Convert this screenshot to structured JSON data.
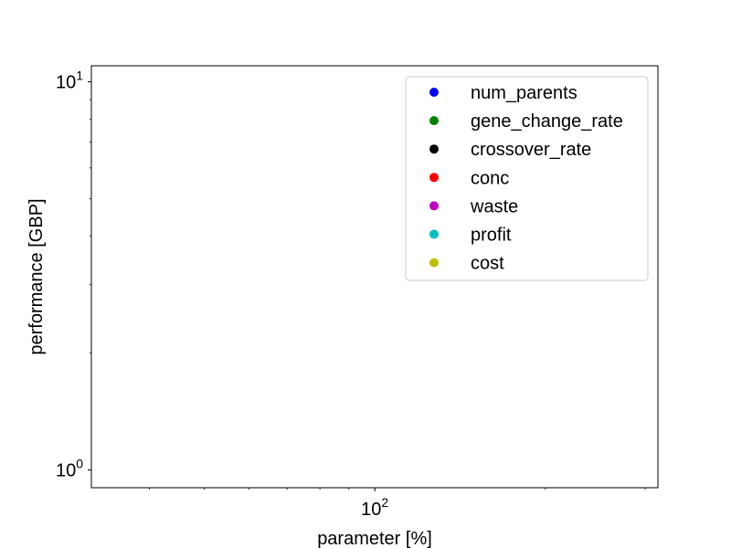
{
  "chart_data": {
    "type": "scatter",
    "title": "",
    "xlabel": "parameter [%]",
    "ylabel": "performance [GBP]",
    "xscale": "log",
    "yscale": "log",
    "xlim": [
      31.6,
      316
    ],
    "ylim": [
      0.9,
      11
    ],
    "x_ticks": [
      {
        "base": "10",
        "exp": "2",
        "value": 100
      }
    ],
    "y_ticks": [
      {
        "base": "10",
        "exp": "0",
        "value": 1
      },
      {
        "base": "10",
        "exp": "1",
        "value": 10
      }
    ],
    "grid": false,
    "legend_position": "top-right",
    "series": [
      {
        "name": "num_parents",
        "color": "#0000ff",
        "marker": "circle",
        "points": []
      },
      {
        "name": "gene_change_rate",
        "color": "#008000",
        "marker": "circle",
        "points": []
      },
      {
        "name": "crossover_rate",
        "color": "#000000",
        "marker": "circle",
        "points": []
      },
      {
        "name": "conc",
        "color": "#ff0000",
        "marker": "circle",
        "points": []
      },
      {
        "name": "waste",
        "color": "#bf00bf",
        "marker": "circle",
        "points": []
      },
      {
        "name": "profit",
        "color": "#00bfbf",
        "marker": "circle",
        "points": []
      },
      {
        "name": "cost",
        "color": "#bfbf00",
        "marker": "circle",
        "points": []
      }
    ]
  }
}
